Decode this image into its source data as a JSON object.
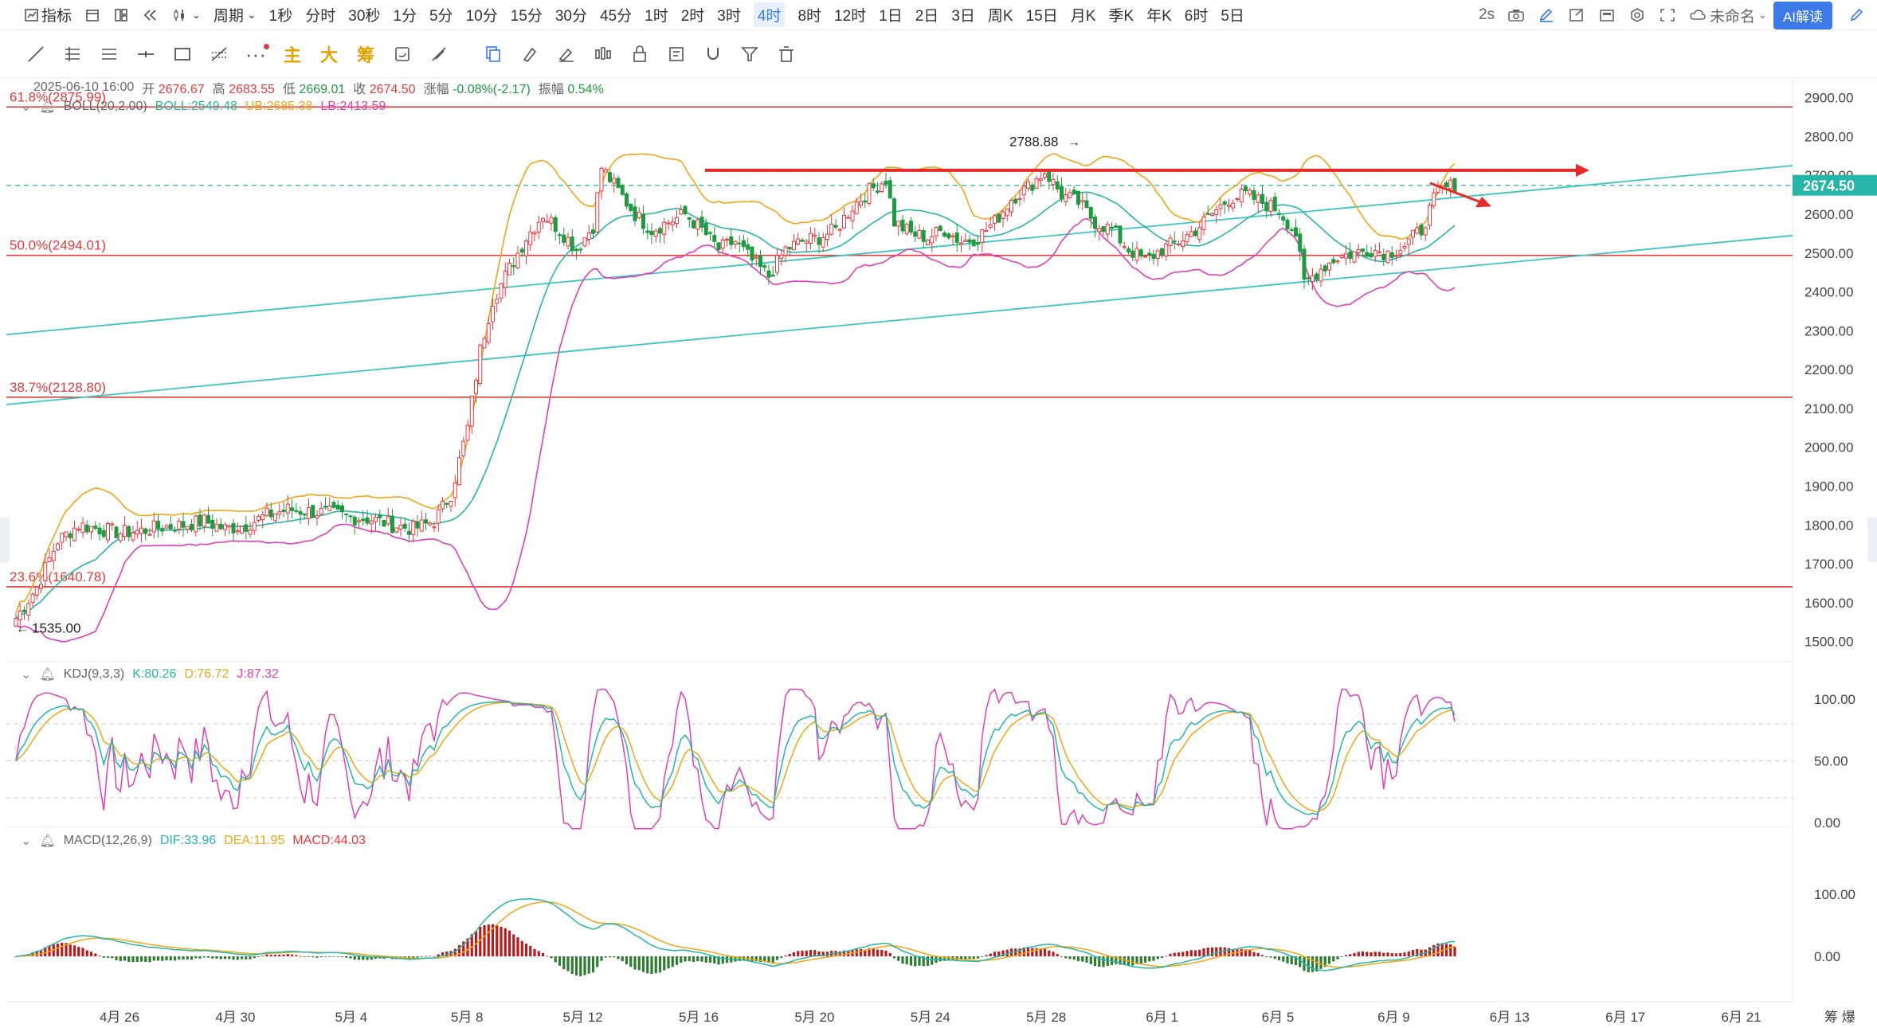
{
  "toolbar": {
    "indicator_label": "指标",
    "period_label": "周期",
    "periods": [
      "1秒",
      "分时",
      "30秒",
      "1分",
      "5分",
      "10分",
      "15分",
      "30分",
      "45分",
      "1时",
      "2时",
      "3时",
      "4时",
      "8时",
      "12时",
      "1日",
      "2日",
      "3日",
      "周K",
      "15日",
      "月K",
      "季K",
      "年K",
      "6时",
      "5日"
    ],
    "selected_period": "4时",
    "refresh": "2s",
    "layout_name": "未命名",
    "ai_button": "AI解读"
  },
  "drawbar": {
    "main_label": "主",
    "big_label": "大",
    "chip_label": "筹"
  },
  "ohlc": {
    "date": "2025-06-10 16:00",
    "open_label": "开",
    "open": "2676.67",
    "high_label": "高",
    "high": "2683.55",
    "low_label": "低",
    "low": "2669.01",
    "close_label": "收",
    "close": "2674.50",
    "change_label": "涨幅",
    "change": "-0.08%(-2.17)",
    "amp_label": "振幅",
    "amp": "0.54%"
  },
  "boll": {
    "name": "BOLL(20,2.00)",
    "mid": "BOLL:2549.48",
    "ub": "UB:2685.38",
    "lb": "LB:2413.59"
  },
  "kdj": {
    "name": "KDJ(9,3,3)",
    "k": "K:80.26",
    "d": "D:76.72",
    "j": "J:87.32"
  },
  "macd": {
    "name": "MACD(12,26,9)",
    "dif": "DIF:33.96",
    "dea": "DEA:11.95",
    "macd": "MACD:44.03"
  },
  "annotations": {
    "high_marker": "2788.88",
    "low_marker": "1535.00",
    "last_price": "2674.50"
  },
  "fib_levels": [
    {
      "label": "61.8%(2875.99)",
      "value": 2875.99
    },
    {
      "label": "50.0%(2494.01)",
      "value": 2494.01
    },
    {
      "label": "38.7%(2128.80)",
      "value": 2128.8
    },
    {
      "label": "23.6%(1640.78)",
      "value": 1640.78
    }
  ],
  "colors": {
    "up": "#e8393f",
    "down": "#1f9a41",
    "boll_mid": "#26b6a9",
    "boll_ub": "#f2a516",
    "boll_lb": "#e03fb8",
    "fib": "#e23b3b",
    "trend": "#3cc5c3",
    "accent": "#3b7ae8"
  },
  "chart_data": {
    "type": "candlestick",
    "price_axis": {
      "min": 1450,
      "max": 2930,
      "ticks": [
        1500,
        1600,
        1700,
        1800,
        1900,
        2000,
        2100,
        2200,
        2300,
        2400,
        2500,
        2600,
        2700,
        2800,
        2900
      ]
    },
    "x_ticks": [
      "4月 26",
      "4月 30",
      "5月 4",
      "5月 8",
      "5月 12",
      "5月 16",
      "5月 20",
      "5月 24",
      "5月 28",
      "6月 1",
      "6月 5",
      "6月 9",
      "6月 13",
      "6月 17",
      "6月 21"
    ],
    "kdj_axis": {
      "ticks": [
        "100.00",
        "50.00",
        "0.00"
      ]
    },
    "macd_axis": {
      "ticks": [
        "100.00",
        "0.00"
      ]
    },
    "close_anchors": [
      [
        0,
        1560
      ],
      [
        5,
        1640
      ],
      [
        10,
        1760
      ],
      [
        15,
        1800
      ],
      [
        20,
        1790
      ],
      [
        25,
        1780
      ],
      [
        30,
        1785
      ],
      [
        35,
        1795
      ],
      [
        40,
        1800
      ],
      [
        45,
        1810
      ],
      [
        50,
        1790
      ],
      [
        55,
        1800
      ],
      [
        60,
        1825
      ],
      [
        65,
        1840
      ],
      [
        70,
        1835
      ],
      [
        75,
        1830
      ],
      [
        80,
        1820
      ],
      [
        85,
        1815
      ],
      [
        90,
        1800
      ],
      [
        95,
        1790
      ],
      [
        100,
        1810
      ],
      [
        104,
        1880
      ],
      [
        108,
        2050
      ],
      [
        111,
        2250
      ],
      [
        114,
        2380
      ],
      [
        118,
        2460
      ],
      [
        122,
        2540
      ],
      [
        126,
        2600
      ],
      [
        130,
        2560
      ],
      [
        134,
        2510
      ],
      [
        138,
        2570
      ],
      [
        140,
        2720
      ],
      [
        144,
        2660
      ],
      [
        148,
        2600
      ],
      [
        152,
        2560
      ],
      [
        156,
        2580
      ],
      [
        160,
        2600
      ],
      [
        164,
        2560
      ],
      [
        168,
        2510
      ],
      [
        172,
        2530
      ],
      [
        176,
        2480
      ],
      [
        180,
        2440
      ],
      [
        184,
        2510
      ],
      [
        188,
        2530
      ],
      [
        192,
        2540
      ],
      [
        196,
        2560
      ],
      [
        200,
        2620
      ],
      [
        204,
        2660
      ],
      [
        208,
        2690
      ],
      [
        210,
        2580
      ],
      [
        214,
        2550
      ],
      [
        218,
        2540
      ],
      [
        222,
        2560
      ],
      [
        226,
        2530
      ],
      [
        230,
        2540
      ],
      [
        234,
        2580
      ],
      [
        238,
        2640
      ],
      [
        242,
        2670
      ],
      [
        246,
        2710
      ],
      [
        250,
        2650
      ],
      [
        254,
        2630
      ],
      [
        258,
        2580
      ],
      [
        262,
        2560
      ],
      [
        266,
        2510
      ],
      [
        270,
        2480
      ],
      [
        274,
        2510
      ],
      [
        278,
        2530
      ],
      [
        282,
        2560
      ],
      [
        286,
        2600
      ],
      [
        290,
        2640
      ],
      [
        294,
        2650
      ],
      [
        298,
        2630
      ],
      [
        302,
        2610
      ],
      [
        306,
        2550
      ],
      [
        308,
        2420
      ],
      [
        312,
        2460
      ],
      [
        316,
        2490
      ],
      [
        320,
        2500
      ],
      [
        324,
        2510
      ],
      [
        328,
        2500
      ],
      [
        332,
        2520
      ],
      [
        336,
        2560
      ],
      [
        340,
        2660
      ],
      [
        344,
        2675
      ]
    ]
  }
}
